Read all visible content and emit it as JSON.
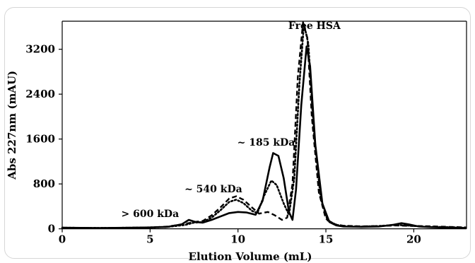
{
  "chart_data": {
    "type": "line",
    "title": "",
    "xlabel": "Elution Volume (mL)",
    "ylabel": "Abs 227nm (mAU)",
    "xlim": [
      0,
      23
    ],
    "ylim": [
      -80,
      3700
    ],
    "x_ticks": [
      0,
      5,
      10,
      15,
      20
    ],
    "y_ticks": [
      0,
      800,
      1600,
      2400,
      3200
    ],
    "grid": false,
    "legend": "none",
    "series": [
      {
        "style": "solid",
        "points": [
          [
            0,
            20
          ],
          [
            2,
            15
          ],
          [
            4,
            20
          ],
          [
            5,
            25
          ],
          [
            6,
            35
          ],
          [
            6.8,
            80
          ],
          [
            7.2,
            160
          ],
          [
            7.6,
            120
          ],
          [
            8,
            110
          ],
          [
            8.5,
            160
          ],
          [
            9,
            220
          ],
          [
            9.5,
            280
          ],
          [
            10,
            300
          ],
          [
            10.5,
            290
          ],
          [
            11,
            250
          ],
          [
            11.4,
            500
          ],
          [
            11.8,
            1100
          ],
          [
            12,
            1350
          ],
          [
            12.3,
            1300
          ],
          [
            12.6,
            900
          ],
          [
            12.9,
            300
          ],
          [
            13.1,
            160
          ],
          [
            13.3,
            700
          ],
          [
            13.6,
            2200
          ],
          [
            13.9,
            3250
          ],
          [
            14.1,
            2900
          ],
          [
            14.4,
            1500
          ],
          [
            14.8,
            450
          ],
          [
            15.2,
            120
          ],
          [
            15.6,
            60
          ],
          [
            16,
            40
          ],
          [
            17,
            35
          ],
          [
            18,
            40
          ],
          [
            18.8,
            70
          ],
          [
            19.3,
            100
          ],
          [
            19.7,
            80
          ],
          [
            20.3,
            40
          ],
          [
            21,
            30
          ],
          [
            22,
            20
          ],
          [
            23,
            15
          ]
        ]
      },
      {
        "style": "dotted",
        "points": [
          [
            0,
            20
          ],
          [
            2,
            15
          ],
          [
            4,
            20
          ],
          [
            5,
            25
          ],
          [
            6,
            35
          ],
          [
            7,
            70
          ],
          [
            7.5,
            110
          ],
          [
            8,
            120
          ],
          [
            8.5,
            200
          ],
          [
            9,
            330
          ],
          [
            9.5,
            480
          ],
          [
            9.9,
            520
          ],
          [
            10.3,
            460
          ],
          [
            10.8,
            320
          ],
          [
            11.1,
            280
          ],
          [
            11.5,
            600
          ],
          [
            11.9,
            860
          ],
          [
            12.2,
            780
          ],
          [
            12.6,
            450
          ],
          [
            12.9,
            250
          ],
          [
            13.2,
            900
          ],
          [
            13.5,
            2600
          ],
          [
            13.75,
            3650
          ],
          [
            14,
            3300
          ],
          [
            14.3,
            1800
          ],
          [
            14.7,
            550
          ],
          [
            15.1,
            150
          ],
          [
            15.6,
            70
          ],
          [
            16,
            50
          ],
          [
            17,
            40
          ],
          [
            18,
            50
          ],
          [
            19,
            70
          ],
          [
            19.6,
            60
          ],
          [
            20.3,
            45
          ],
          [
            21,
            35
          ],
          [
            22,
            30
          ],
          [
            23,
            20
          ]
        ]
      },
      {
        "style": "dashed",
        "points": [
          [
            0,
            20
          ],
          [
            2,
            15
          ],
          [
            4,
            20
          ],
          [
            5,
            25
          ],
          [
            6,
            40
          ],
          [
            7,
            90
          ],
          [
            7.5,
            120
          ],
          [
            8,
            140
          ],
          [
            8.5,
            240
          ],
          [
            9,
            380
          ],
          [
            9.5,
            540
          ],
          [
            9.9,
            580
          ],
          [
            10.3,
            520
          ],
          [
            10.8,
            380
          ],
          [
            11.2,
            270
          ],
          [
            11.7,
            300
          ],
          [
            12.1,
            240
          ],
          [
            12.5,
            160
          ],
          [
            12.8,
            200
          ],
          [
            13.1,
            800
          ],
          [
            13.4,
            2700
          ],
          [
            13.7,
            3680
          ],
          [
            13.95,
            3400
          ],
          [
            14.2,
            2000
          ],
          [
            14.6,
            650
          ],
          [
            15,
            180
          ],
          [
            15.5,
            80
          ],
          [
            16,
            55
          ],
          [
            17,
            45
          ],
          [
            18,
            50
          ],
          [
            19,
            60
          ],
          [
            19.5,
            55
          ],
          [
            20.2,
            50
          ],
          [
            21,
            45
          ],
          [
            22,
            35
          ],
          [
            23,
            25
          ]
        ]
      }
    ],
    "annotations": [
      {
        "text": "Free HSA",
        "x": 14.35,
        "y": 3560
      },
      {
        "text": "~ 185 kDa",
        "x": 11.6,
        "y": 1480
      },
      {
        "text": "~ 540 kDa",
        "x": 8.6,
        "y": 650
      },
      {
        "text": "> 600 kDa",
        "x": 5.0,
        "y": 210
      }
    ]
  }
}
